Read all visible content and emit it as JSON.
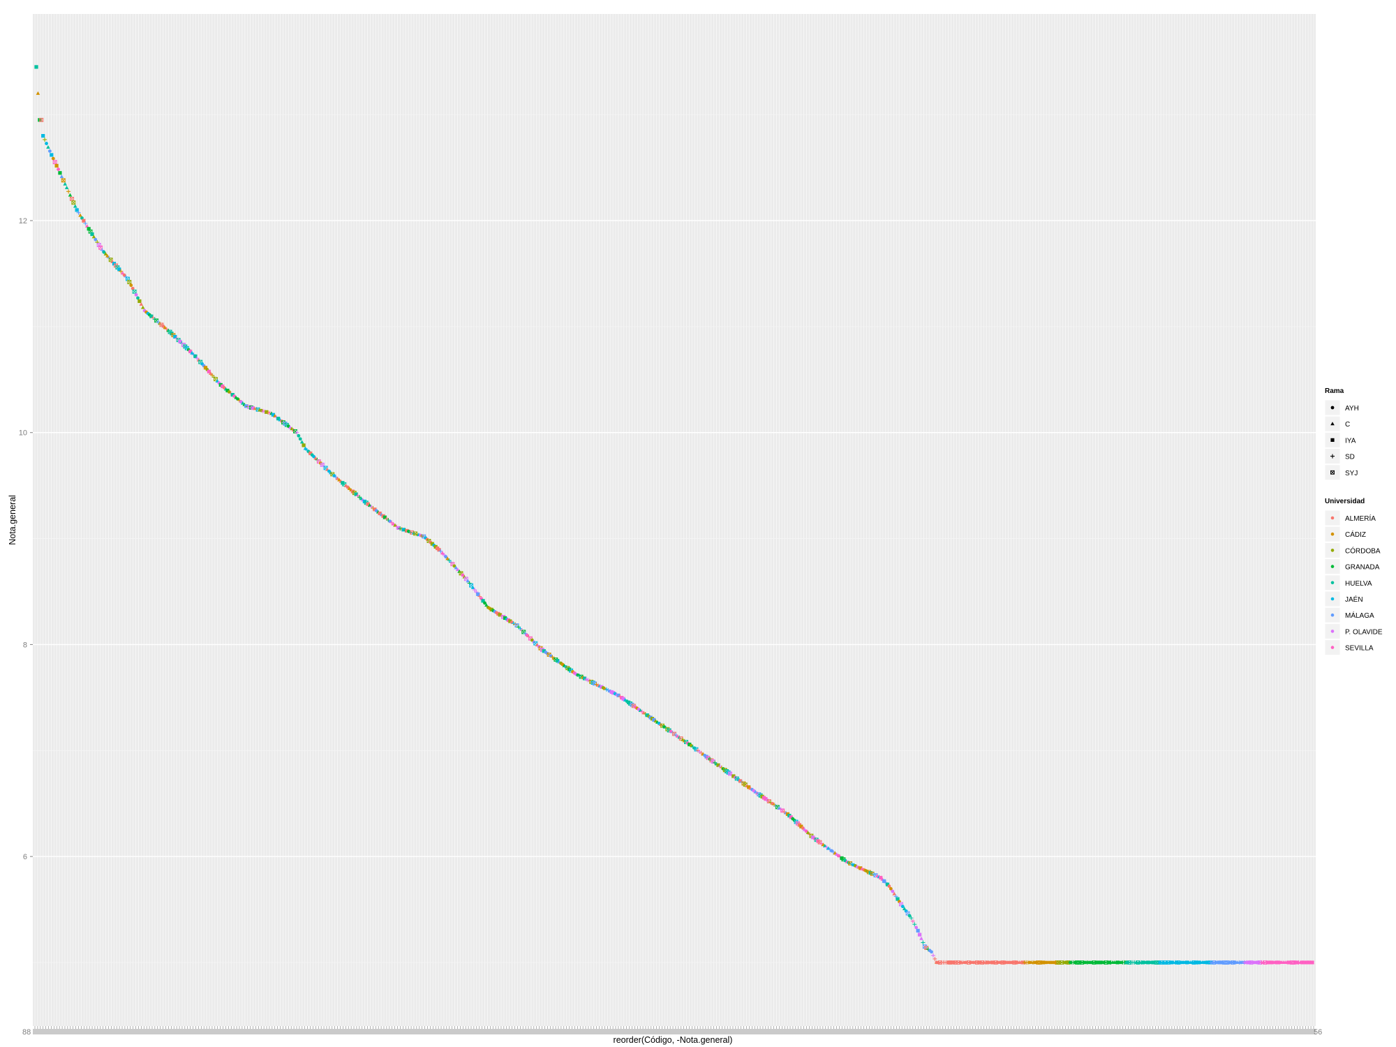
{
  "chart_data": {
    "type": "scatter",
    "title": "",
    "xlabel": "reorder(Código, -Nota.general)",
    "ylabel": "Nota.general",
    "ylim": [
      4.4,
      13.95
    ],
    "yticks": [
      "6",
      "8",
      "10",
      "12"
    ],
    "ytick_values": [
      6,
      8,
      10,
      12
    ],
    "grid": true,
    "panel_background": "#ebebeb",
    "grid_color": "#ffffff",
    "n_x_categories": 470,
    "x_tick_label_left": "88",
    "x_tick_label_right": "56",
    "legends": [
      {
        "title": "Rama",
        "entries": [
          {
            "label": "AYH",
            "shape": "circle"
          },
          {
            "label": "C",
            "shape": "triangle"
          },
          {
            "label": "IYA",
            "shape": "square"
          },
          {
            "label": "SD",
            "shape": "plus"
          },
          {
            "label": "SYJ",
            "shape": "boxed-x"
          }
        ]
      },
      {
        "title": "Universidad",
        "entries": [
          {
            "label": "ALMERÍA",
            "color": "#F8766D"
          },
          {
            "label": "CÁDIZ",
            "color": "#D39200"
          },
          {
            "label": "CÓRDOBA",
            "color": "#93AA00"
          },
          {
            "label": "GRANADA",
            "color": "#00BA38"
          },
          {
            "label": "HUELVA",
            "color": "#00C19F"
          },
          {
            "label": "JAÉN",
            "color": "#00B9E3"
          },
          {
            "label": "MÁLAGA",
            "color": "#619CFF"
          },
          {
            "label": "P. OLAVIDE",
            "color": "#DB72FB"
          },
          {
            "label": "SEVILLA",
            "color": "#FF61C3"
          }
        ]
      }
    ],
    "series_note_points": [
      [
        1,
        13.45
      ],
      [
        3,
        12.95
      ],
      [
        4,
        12.95
      ],
      [
        5,
        12.8
      ],
      [
        10,
        12.62
      ],
      [
        15,
        12.45
      ],
      [
        25,
        12.1
      ],
      [
        40,
        11.72
      ],
      [
        55,
        11.45
      ],
      [
        65,
        11.15
      ],
      [
        80,
        10.95
      ],
      [
        95,
        10.72
      ],
      [
        110,
        10.45
      ],
      [
        125,
        10.25
      ],
      [
        140,
        10.18
      ],
      [
        155,
        10.0
      ],
      [
        160,
        9.85
      ],
      [
        175,
        9.62
      ],
      [
        195,
        9.35
      ],
      [
        215,
        9.1
      ],
      [
        230,
        9.02
      ],
      [
        240,
        8.88
      ],
      [
        255,
        8.62
      ],
      [
        268,
        8.35
      ],
      [
        285,
        8.18
      ],
      [
        300,
        7.95
      ],
      [
        320,
        7.72
      ],
      [
        345,
        7.52
      ],
      [
        365,
        7.3
      ],
      [
        385,
        7.08
      ],
      [
        405,
        6.85
      ],
      [
        425,
        6.62
      ],
      [
        445,
        6.4
      ],
      [
        460,
        6.18
      ],
      [
        480,
        5.95
      ],
      [
        500,
        5.8
      ],
      [
        505,
        5.72
      ],
      [
        512,
        5.55
      ],
      [
        518,
        5.42
      ],
      [
        522,
        5.3
      ],
      [
        526,
        5.15
      ],
      [
        530,
        5.1
      ],
      [
        533,
        5.0
      ],
      [
        755,
        5.0
      ]
    ],
    "x_domain": [
      1,
      755
    ],
    "university_bands": [
      {
        "from": 533,
        "to": 585,
        "color": "#F8766D"
      },
      {
        "from": 585,
        "to": 605,
        "color": "#D39200"
      },
      {
        "from": 605,
        "to": 612,
        "color": "#93AA00"
      },
      {
        "from": 612,
        "to": 645,
        "color": "#00BA38"
      },
      {
        "from": 645,
        "to": 665,
        "color": "#00C19F"
      },
      {
        "from": 665,
        "to": 695,
        "color": "#00B9E3"
      },
      {
        "from": 695,
        "to": 715,
        "color": "#619CFF"
      },
      {
        "from": 715,
        "to": 725,
        "color": "#DB72FB"
      },
      {
        "from": 725,
        "to": 755,
        "color": "#FF61C3"
      }
    ]
  }
}
